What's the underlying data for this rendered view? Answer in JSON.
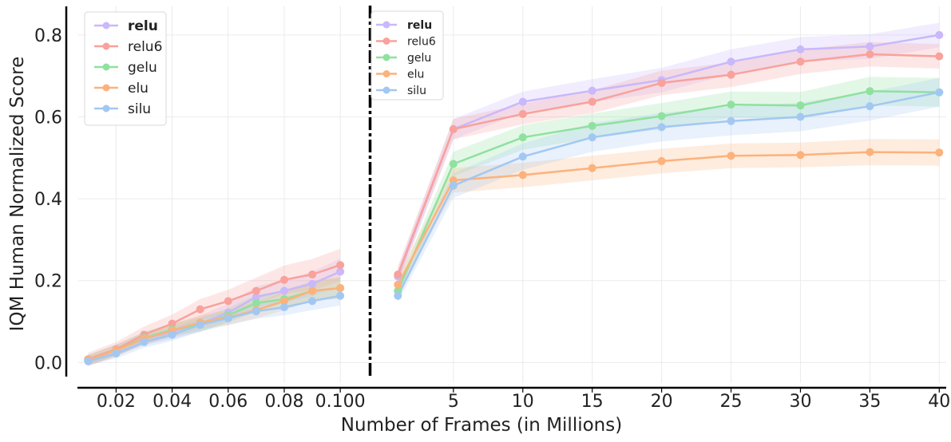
{
  "chart_data": {
    "type": "line",
    "xlabel": "Number of Frames (in Millions)",
    "ylabel": "IQM Human Normalized Score",
    "ylim": [
      -0.05,
      0.87
    ],
    "yticks": [
      "0.0",
      "0.2",
      "0.4",
      "0.6",
      "0.8"
    ],
    "yticks_values": [
      0.0,
      0.2,
      0.4,
      0.6,
      0.8
    ],
    "grid": true,
    "legend_position": "top-left (both panels)",
    "panels": [
      {
        "name": "left",
        "xlim": [
          0.0065,
          0.1105
        ],
        "xticks": [
          "0.02",
          "0.04",
          "0.06",
          "0.08",
          "0.100"
        ],
        "xticks_values": [
          0.02,
          0.04,
          0.06,
          0.08,
          0.1
        ],
        "x": [
          0.01,
          0.02,
          0.03,
          0.04,
          0.05,
          0.06,
          0.07,
          0.08,
          0.09,
          0.1
        ],
        "series": [
          {
            "name": "relu",
            "color": "#c9b8fa",
            "values": [
              0.005,
              0.03,
              0.058,
              0.075,
              0.095,
              0.122,
              0.16,
              0.175,
              0.192,
              0.222
            ],
            "band": [
              0.014,
              0.014,
              0.016,
              0.018,
              0.02,
              0.022,
              0.026,
              0.028,
              0.03,
              0.032
            ]
          },
          {
            "name": "relu6",
            "color": "#f9a19c",
            "values": [
              0.008,
              0.032,
              0.068,
              0.095,
              0.13,
              0.15,
              0.175,
              0.202,
              0.215,
              0.238
            ],
            "band": [
              0.016,
              0.018,
              0.02,
              0.022,
              0.025,
              0.028,
              0.032,
              0.035,
              0.038,
              0.04
            ]
          },
          {
            "name": "gelu",
            "color": "#8fe19f",
            "values": [
              0.006,
              0.03,
              0.06,
              0.08,
              0.092,
              0.115,
              0.145,
              0.155,
              0.175,
              0.182
            ],
            "band": [
              0.012,
              0.013,
              0.015,
              0.016,
              0.017,
              0.018,
              0.02,
              0.022,
              0.024,
              0.026
            ]
          },
          {
            "name": "elu",
            "color": "#fcb27c",
            "values": [
              0.006,
              0.03,
              0.058,
              0.078,
              0.098,
              0.11,
              0.128,
              0.15,
              0.175,
              0.182
            ],
            "band": [
              0.012,
              0.013,
              0.015,
              0.016,
              0.017,
              0.018,
              0.02,
              0.022,
              0.024,
              0.026
            ]
          },
          {
            "name": "silu",
            "color": "#a2c8f2",
            "values": [
              0.003,
              0.022,
              0.05,
              0.068,
              0.092,
              0.108,
              0.125,
              0.135,
              0.15,
              0.163
            ],
            "band": [
              0.01,
              0.012,
              0.014,
              0.015,
              0.016,
              0.017,
              0.018,
              0.02,
              0.022,
              0.024
            ]
          }
        ]
      },
      {
        "name": "right",
        "xlim": [
          -0.8,
          40.5
        ],
        "xticks": [
          "5",
          "10",
          "15",
          "20",
          "25",
          "30",
          "35",
          "40"
        ],
        "xticks_values": [
          5,
          10,
          15,
          20,
          25,
          30,
          35,
          40
        ],
        "x": [
          1,
          5,
          10,
          15,
          20,
          25,
          30,
          35,
          40
        ],
        "series": [
          {
            "name": "relu",
            "color": "#c9b8fa",
            "values": [
              0.21,
              0.57,
              0.637,
              0.664,
              0.69,
              0.735,
              0.765,
              0.772,
              0.8
            ],
            "band": [
              0.02,
              0.025,
              0.025,
              0.028,
              0.03,
              0.03,
              0.03,
              0.03,
              0.03
            ]
          },
          {
            "name": "relu6",
            "color": "#f9a19c",
            "values": [
              0.215,
              0.57,
              0.607,
              0.637,
              0.683,
              0.703,
              0.735,
              0.753,
              0.748
            ],
            "band": [
              0.02,
              0.025,
              0.025,
              0.028,
              0.03,
              0.03,
              0.03,
              0.03,
              0.03
            ]
          },
          {
            "name": "gelu",
            "color": "#8fe19f",
            "values": [
              0.175,
              0.485,
              0.55,
              0.578,
              0.602,
              0.63,
              0.628,
              0.663,
              0.66
            ],
            "band": [
              0.02,
              0.03,
              0.03,
              0.03,
              0.032,
              0.032,
              0.033,
              0.035,
              0.035
            ]
          },
          {
            "name": "elu",
            "color": "#fcb27c",
            "values": [
              0.19,
              0.445,
              0.458,
              0.475,
              0.492,
              0.505,
              0.507,
              0.514,
              0.513
            ],
            "band": [
              0.02,
              0.03,
              0.03,
              0.03,
              0.03,
              0.03,
              0.03,
              0.032,
              0.032
            ]
          },
          {
            "name": "silu",
            "color": "#a2c8f2",
            "values": [
              0.163,
              0.432,
              0.503,
              0.55,
              0.575,
              0.59,
              0.6,
              0.626,
              0.66
            ],
            "band": [
              0.015,
              0.03,
              0.032,
              0.035,
              0.035,
              0.035,
              0.035,
              0.035,
              0.035
            ]
          }
        ]
      }
    ],
    "legend": {
      "entries": [
        "relu",
        "relu6",
        "gelu",
        "elu",
        "silu"
      ],
      "bold_entry": "relu"
    }
  }
}
